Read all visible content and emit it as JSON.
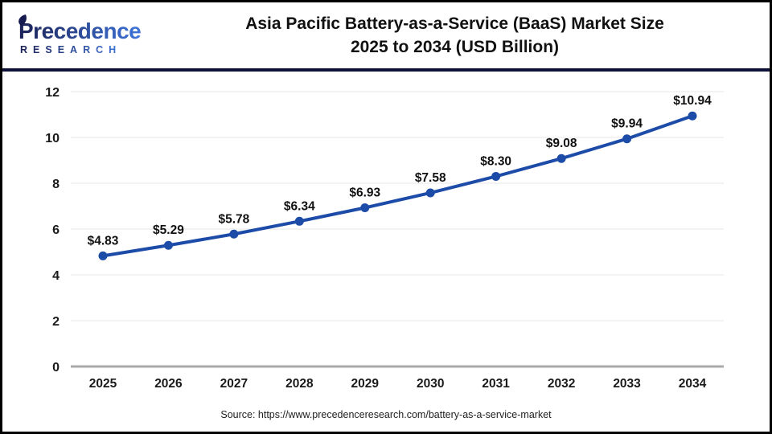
{
  "logo": {
    "name": "Precedence",
    "subtitle": "RESEARCH",
    "gradient_start": "#1b2156",
    "gradient_end": "#3f74d9"
  },
  "header": {
    "title_line1": "Asia Pacific Battery-as-a-Service (BaaS) Market Size",
    "title_line2": "2025 to 2034 (USD Billion)"
  },
  "footer": {
    "source": "Source: https://www.precedenceresearch.com/battery-as-a-service-market"
  },
  "chart_data": {
    "type": "line",
    "title": "Asia Pacific Battery-as-a-Service (BaaS) Market Size 2025 to 2034 (USD Billion)",
    "categories": [
      "2025",
      "2026",
      "2027",
      "2028",
      "2029",
      "2030",
      "2031",
      "2032",
      "2033",
      "2034"
    ],
    "values": [
      4.83,
      5.29,
      5.78,
      6.34,
      6.93,
      7.58,
      8.3,
      9.08,
      9.94,
      10.94
    ],
    "point_labels": [
      "$4.83",
      "$5.29",
      "$5.78",
      "$6.34",
      "$6.93",
      "$7.58",
      "$8.30",
      "$9.08",
      "$9.94",
      "$10.94"
    ],
    "xlabel": "",
    "ylabel": "",
    "ylim": [
      0,
      12
    ],
    "yticks": [
      0,
      2,
      4,
      6,
      8,
      10,
      12
    ],
    "grid": true,
    "legend": "none",
    "line_color": "#1d4ca8",
    "marker_color": "#1d4ca8",
    "grid_color": "#ececec",
    "axis_color": "#a9a9a9"
  }
}
